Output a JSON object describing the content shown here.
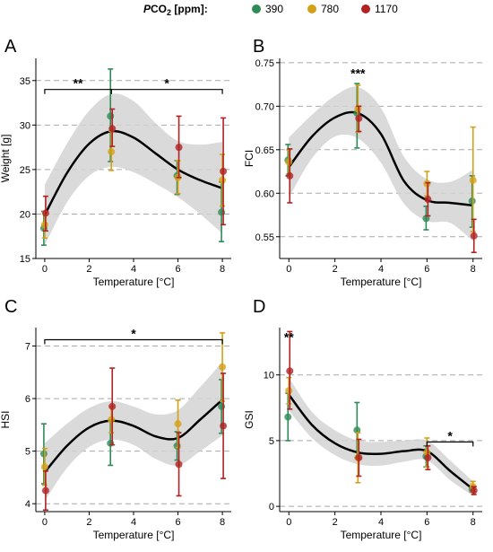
{
  "legend": {
    "title_prefix": "P",
    "title_main": "CO",
    "title_sub": "2",
    "title_suffix": " [ppm]:",
    "items": [
      {
        "label": "390",
        "color": "#2e8b57"
      },
      {
        "label": "780",
        "color": "#d4a017"
      },
      {
        "label": "1170",
        "color": "#b22222"
      }
    ]
  },
  "colors": {
    "ribbon": "#d3d3d3",
    "grid": "#a9a9a9",
    "curve": "#000000"
  },
  "chart_data": [
    {
      "panel": "A",
      "type": "scatter",
      "xlabel": "Temperature [°C]",
      "ylabel": "Weight [g]",
      "xlim": [
        -0.4,
        8.4
      ],
      "ylim": [
        15,
        37.5
      ],
      "xticks": [
        0,
        2,
        4,
        6,
        8
      ],
      "yticks": [
        15,
        20,
        25,
        30,
        35
      ],
      "grid_y": [
        20,
        25,
        30,
        35
      ],
      "series": [
        {
          "name": "390",
          "points": [
            {
              "x": 0,
              "y": 18.4,
              "lo": 16.5,
              "hi": 20.3
            },
            {
              "x": 3,
              "y": 31.0,
              "lo": 25.9,
              "hi": 36.3
            },
            {
              "x": 6,
              "y": 24.3,
              "lo": 22.2,
              "hi": 26.0
            },
            {
              "x": 8,
              "y": 20.2,
              "lo": 16.9,
              "hi": 23.6
            }
          ]
        },
        {
          "name": "780",
          "points": [
            {
              "x": 0,
              "y": 18.8,
              "lo": 17.3,
              "hi": 20.3
            },
            {
              "x": 3,
              "y": 27.0,
              "lo": 24.9,
              "hi": 29.3
            },
            {
              "x": 6,
              "y": 24.1,
              "lo": 22.3,
              "hi": 26.0
            },
            {
              "x": 8,
              "y": 23.8,
              "lo": 20.9,
              "hi": 26.7
            }
          ]
        },
        {
          "name": "1170",
          "points": [
            {
              "x": 0,
              "y": 20.1,
              "lo": 18.1,
              "hi": 22.0
            },
            {
              "x": 3,
              "y": 29.6,
              "lo": 27.6,
              "hi": 31.8
            },
            {
              "x": 6,
              "y": 27.5,
              "lo": 24.1,
              "hi": 31.0
            },
            {
              "x": 8,
              "y": 24.8,
              "lo": 18.8,
              "hi": 30.8
            }
          ]
        }
      ],
      "fit": [
        [
          0,
          19.9
        ],
        [
          1,
          24.6
        ],
        [
          2,
          27.9
        ],
        [
          3,
          29.3
        ],
        [
          4,
          28.6
        ],
        [
          5,
          26.8
        ],
        [
          6,
          25.0
        ],
        [
          7,
          23.8
        ],
        [
          8,
          22.9
        ]
      ],
      "band": [
        [
          0,
          16.5,
          23.3
        ],
        [
          1,
          21.3,
          27.9
        ],
        [
          2,
          24.3,
          31.6
        ],
        [
          3,
          25.3,
          33.5
        ],
        [
          4,
          24.7,
          32.7
        ],
        [
          5,
          23.4,
          30.2
        ],
        [
          6,
          21.9,
          28.2
        ],
        [
          7,
          20.0,
          27.8
        ],
        [
          8,
          17.8,
          28.1
        ]
      ],
      "annotations": [
        {
          "text": "**",
          "x1": 0,
          "x2": 3,
          "y": 34.0
        },
        {
          "text": "*",
          "x1": 3,
          "x2": 8,
          "y": 34.0
        }
      ]
    },
    {
      "panel": "B",
      "type": "scatter",
      "xlabel": "Temperature [°C]",
      "ylabel": "FCI",
      "xlim": [
        -0.4,
        8.4
      ],
      "ylim": [
        0.525,
        0.755
      ],
      "xticks": [
        0,
        2,
        4,
        6,
        8
      ],
      "yticks": [
        0.55,
        0.6,
        0.65,
        0.7,
        0.75
      ],
      "grid_y": [
        0.55,
        0.6,
        0.65,
        0.7,
        0.75
      ],
      "series": [
        {
          "name": "390",
          "points": [
            {
              "x": 0,
              "y": 0.638,
              "lo": 0.62,
              "hi": 0.656
            },
            {
              "x": 3,
              "y": 0.692,
              "lo": 0.652,
              "hi": 0.726
            },
            {
              "x": 6,
              "y": 0.571,
              "lo": 0.558,
              "hi": 0.585
            },
            {
              "x": 8,
              "y": 0.591,
              "lo": 0.561,
              "hi": 0.62
            }
          ]
        },
        {
          "name": "780",
          "points": [
            {
              "x": 0,
              "y": 0.636,
              "lo": 0.622,
              "hi": 0.65
            },
            {
              "x": 3,
              "y": 0.697,
              "lo": 0.67,
              "hi": 0.724
            },
            {
              "x": 6,
              "y": 0.611,
              "lo": 0.597,
              "hi": 0.625
            },
            {
              "x": 8,
              "y": 0.615,
              "lo": 0.556,
              "hi": 0.676
            }
          ]
        },
        {
          "name": "1170",
          "points": [
            {
              "x": 0,
              "y": 0.62,
              "lo": 0.589,
              "hi": 0.651
            },
            {
              "x": 3,
              "y": 0.686,
              "lo": 0.671,
              "hi": 0.7
            },
            {
              "x": 6,
              "y": 0.593,
              "lo": 0.574,
              "hi": 0.612
            },
            {
              "x": 8,
              "y": 0.551,
              "lo": 0.532,
              "hi": 0.57
            }
          ]
        }
      ],
      "fit": [
        [
          0,
          0.63
        ],
        [
          1,
          0.665
        ],
        [
          2,
          0.687
        ],
        [
          3,
          0.692
        ],
        [
          4,
          0.668
        ],
        [
          5,
          0.614
        ],
        [
          6,
          0.592
        ],
        [
          7,
          0.589
        ],
        [
          8,
          0.586
        ]
      ],
      "band": [
        [
          0,
          0.595,
          0.664
        ],
        [
          1,
          0.64,
          0.69
        ],
        [
          2,
          0.665,
          0.712
        ],
        [
          3,
          0.663,
          0.722
        ],
        [
          4,
          0.635,
          0.698
        ],
        [
          5,
          0.588,
          0.642
        ],
        [
          6,
          0.568,
          0.616
        ],
        [
          7,
          0.566,
          0.613
        ],
        [
          8,
          0.545,
          0.627
        ]
      ],
      "annotations": [
        {
          "text": "***",
          "x": 3,
          "y": 0.738
        }
      ]
    },
    {
      "panel": "C",
      "type": "scatter",
      "xlabel": "Temperature [°C]",
      "ylabel": "HSI",
      "xlim": [
        -0.4,
        8.4
      ],
      "ylim": [
        3.85,
        7.35
      ],
      "xticks": [
        0,
        2,
        4,
        6,
        8
      ],
      "yticks": [
        4,
        5,
        6,
        7
      ],
      "grid_y": [
        4,
        5,
        6,
        7
      ],
      "series": [
        {
          "name": "390",
          "points": [
            {
              "x": 0,
              "y": 4.95,
              "lo": 4.38,
              "hi": 5.52
            },
            {
              "x": 3,
              "y": 5.15,
              "lo": 4.73,
              "hi": 5.57
            },
            {
              "x": 6,
              "y": 5.1,
              "lo": 4.83,
              "hi": 5.37
            },
            {
              "x": 8,
              "y": 5.85,
              "lo": 5.34,
              "hi": 6.36
            }
          ]
        },
        {
          "name": "780",
          "points": [
            {
              "x": 0,
              "y": 4.7,
              "lo": 4.35,
              "hi": 5.05
            },
            {
              "x": 3,
              "y": 5.6,
              "lo": 5.35,
              "hi": 5.85
            },
            {
              "x": 6,
              "y": 5.52,
              "lo": 5.07,
              "hi": 5.97
            },
            {
              "x": 8,
              "y": 6.6,
              "lo": 5.95,
              "hi": 7.25
            }
          ]
        },
        {
          "name": "1170",
          "points": [
            {
              "x": 0,
              "y": 4.25,
              "lo": 3.88,
              "hi": 4.62
            },
            {
              "x": 3,
              "y": 5.85,
              "lo": 5.12,
              "hi": 6.58
            },
            {
              "x": 6,
              "y": 4.75,
              "lo": 4.15,
              "hi": 5.35
            },
            {
              "x": 8,
              "y": 5.48,
              "lo": 4.48,
              "hi": 6.48
            }
          ]
        }
      ],
      "fit": [
        [
          0,
          4.6
        ],
        [
          1,
          5.1
        ],
        [
          2,
          5.45
        ],
        [
          3,
          5.58
        ],
        [
          4,
          5.48
        ],
        [
          5,
          5.28
        ],
        [
          6,
          5.25
        ],
        [
          7,
          5.6
        ],
        [
          8,
          5.98
        ]
      ],
      "band": [
        [
          0,
          4.05,
          5.15
        ],
        [
          1,
          4.68,
          5.52
        ],
        [
          2,
          5.08,
          5.82
        ],
        [
          3,
          5.22,
          5.95
        ],
        [
          4,
          5.12,
          5.85
        ],
        [
          5,
          4.85,
          5.7
        ],
        [
          6,
          4.73,
          5.78
        ],
        [
          7,
          5.0,
          6.22
        ],
        [
          8,
          5.3,
          6.7
        ]
      ],
      "annotations": [
        {
          "text": "*",
          "x1": 0,
          "x2": 8,
          "y": 7.12
        }
      ]
    },
    {
      "panel": "D",
      "type": "scatter",
      "xlabel": "Temperature [°C]",
      "ylabel": "GSI",
      "xlim": [
        -0.4,
        8.4
      ],
      "ylim": [
        -0.4,
        13.6
      ],
      "xticks": [
        0,
        2,
        4,
        6,
        8
      ],
      "yticks": [
        0,
        5,
        10
      ],
      "grid_y": [
        0,
        5,
        10
      ],
      "series": [
        {
          "name": "390",
          "points": [
            {
              "x": 0,
              "y": 6.8,
              "lo": 5.0,
              "hi": 8.6
            },
            {
              "x": 3,
              "y": 5.8,
              "lo": 3.7,
              "hi": 7.9
            },
            {
              "x": 6,
              "y": 3.8,
              "lo": 3.0,
              "hi": 4.6
            },
            {
              "x": 8,
              "y": 1.3,
              "lo": 1.1,
              "hi": 1.5
            }
          ]
        },
        {
          "name": "780",
          "points": [
            {
              "x": 0,
              "y": 8.8,
              "lo": 7.8,
              "hi": 9.8
            },
            {
              "x": 3,
              "y": 3.7,
              "lo": 1.8,
              "hi": 5.6
            },
            {
              "x": 6,
              "y": 4.1,
              "lo": 3.0,
              "hi": 5.2
            },
            {
              "x": 8,
              "y": 1.5,
              "lo": 1.1,
              "hi": 1.9
            }
          ]
        },
        {
          "name": "1170",
          "points": [
            {
              "x": 0,
              "y": 10.3,
              "lo": 7.4,
              "hi": 13.3
            },
            {
              "x": 3,
              "y": 3.7,
              "lo": 2.3,
              "hi": 5.1
            },
            {
              "x": 6,
              "y": 3.7,
              "lo": 2.8,
              "hi": 4.6
            },
            {
              "x": 8,
              "y": 1.2,
              "lo": 0.9,
              "hi": 1.5
            }
          ]
        }
      ],
      "fit": [
        [
          0,
          8.5
        ],
        [
          1,
          6.2
        ],
        [
          2,
          4.8
        ],
        [
          3,
          4.1
        ],
        [
          4,
          4.0
        ],
        [
          5,
          4.2
        ],
        [
          6,
          4.2
        ],
        [
          7,
          2.7
        ],
        [
          8,
          1.3
        ]
      ],
      "band": [
        [
          0,
          7.3,
          9.8
        ],
        [
          1,
          5.2,
          7.2
        ],
        [
          2,
          3.9,
          5.8
        ],
        [
          3,
          3.2,
          5.0
        ],
        [
          4,
          3.1,
          4.9
        ],
        [
          5,
          3.4,
          5.0
        ],
        [
          6,
          3.5,
          5.0
        ],
        [
          7,
          2.0,
          3.5
        ],
        [
          8,
          0.8,
          1.9
        ]
      ],
      "annotations": [
        {
          "text": "**",
          "x": 0,
          "y": 12.9
        },
        {
          "text": "*",
          "x1": 6,
          "x2": 8,
          "y": 4.9
        }
      ]
    }
  ],
  "panels": [
    {
      "letter": "A"
    },
    {
      "letter": "B"
    },
    {
      "letter": "C"
    },
    {
      "letter": "D"
    }
  ]
}
